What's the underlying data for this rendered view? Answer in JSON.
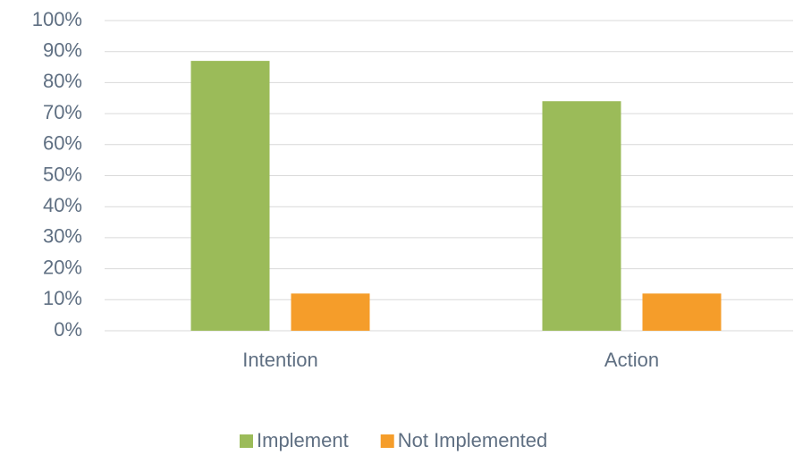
{
  "chart_data": {
    "type": "bar",
    "categories": [
      "Intention",
      "Action"
    ],
    "series": [
      {
        "name": "Implement",
        "color": "#9bbb59",
        "values": [
          87,
          74
        ]
      },
      {
        "name": "Not Implemented",
        "color": "#f59d2a",
        "values": [
          12,
          12
        ]
      }
    ],
    "ylim": [
      0,
      100
    ],
    "yticks": [
      {
        "value": 0,
        "label": "0%"
      },
      {
        "value": 10,
        "label": "10%"
      },
      {
        "value": 20,
        "label": "20%"
      },
      {
        "value": 30,
        "label": "30%"
      },
      {
        "value": 40,
        "label": "40%"
      },
      {
        "value": 50,
        "label": "50%"
      },
      {
        "value": 60,
        "label": "60%"
      },
      {
        "value": 70,
        "label": "70%"
      },
      {
        "value": 80,
        "label": "80%"
      },
      {
        "value": 90,
        "label": "90%"
      },
      {
        "value": 100,
        "label": "100%"
      }
    ],
    "grid": true,
    "legend": "bottom"
  }
}
